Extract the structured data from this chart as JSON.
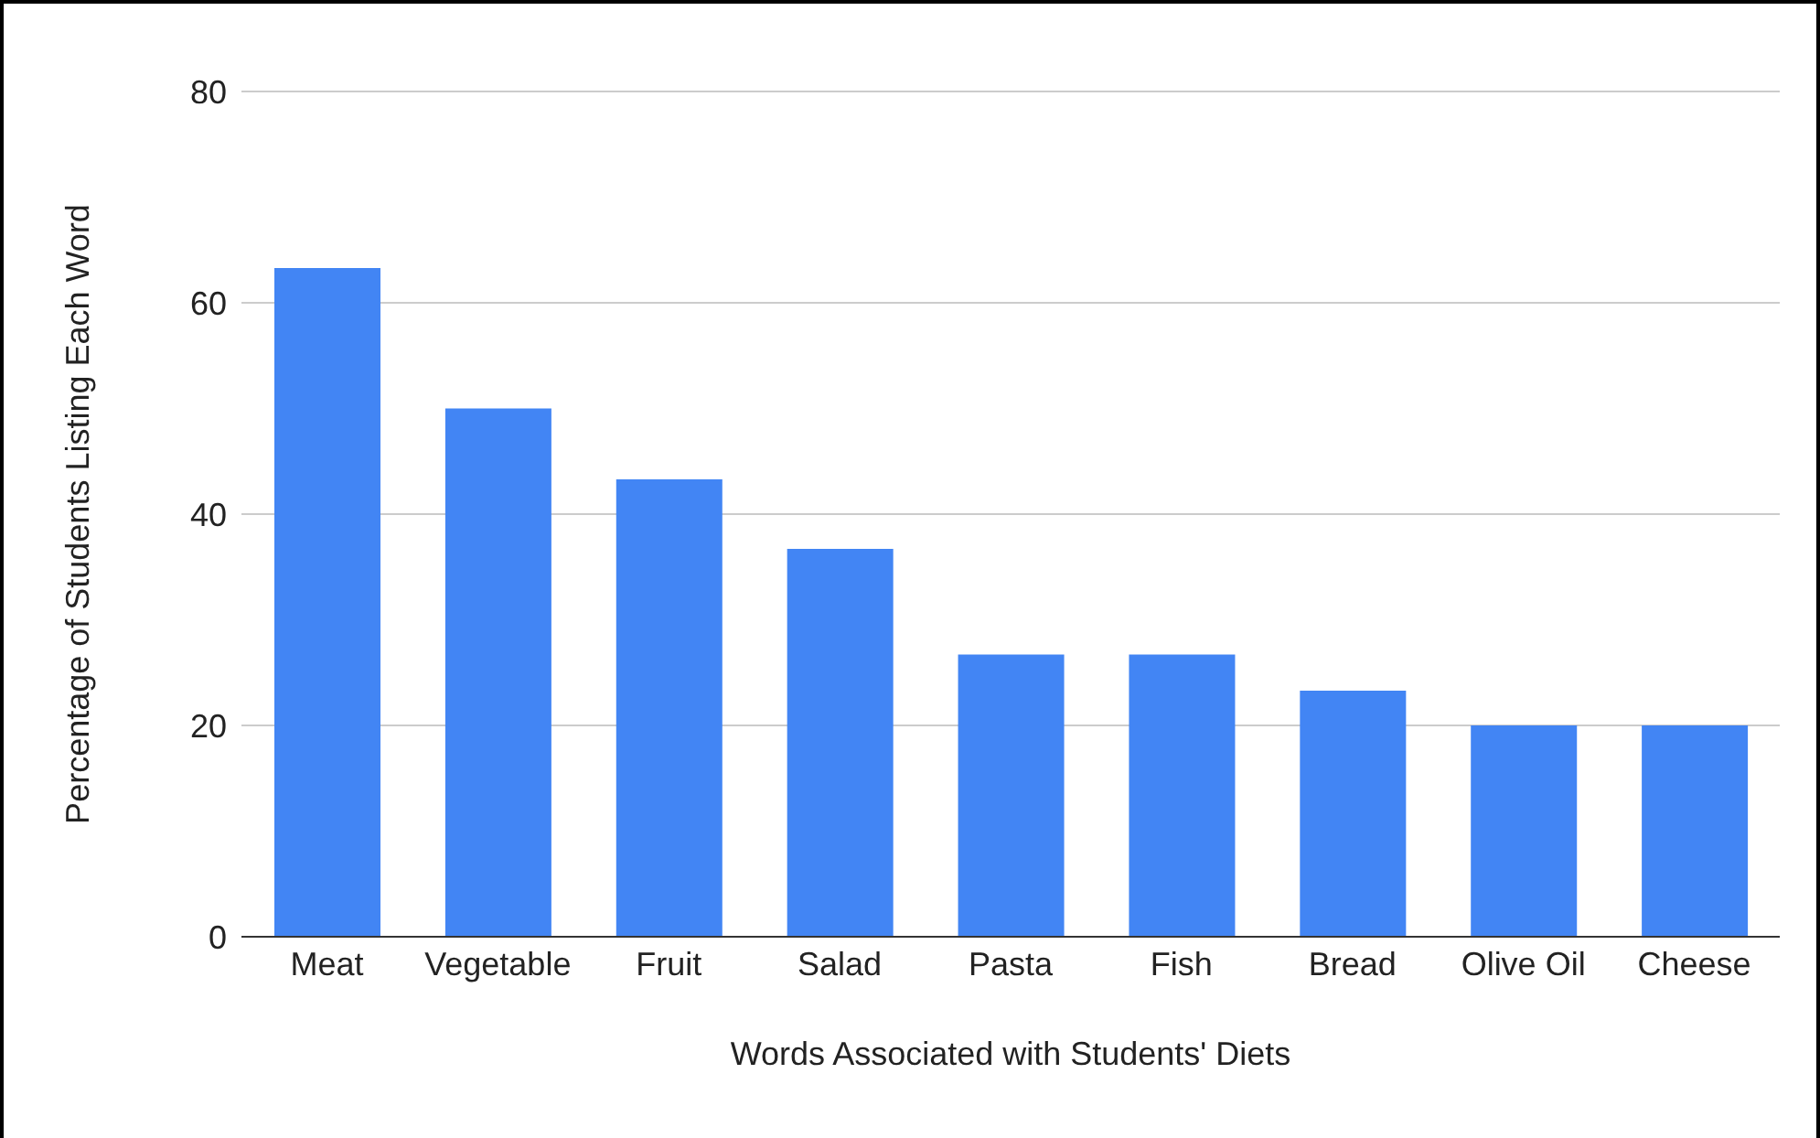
{
  "chart_data": {
    "type": "bar",
    "categories": [
      "Meat",
      "Vegetable",
      "Fruit",
      "Salad",
      "Pasta",
      "Fish",
      "Bread",
      "Olive Oil",
      "Cheese"
    ],
    "values": [
      63.3,
      50,
      43.3,
      36.7,
      26.7,
      26.7,
      23.3,
      20,
      20
    ],
    "color": "#4285f4",
    "xlabel": "Words Associated with Students' Diets",
    "ylabel": "Percentage of Students Listing Each Word",
    "ylim": [
      0,
      80
    ],
    "yticks": [
      0,
      20,
      40,
      60,
      80
    ],
    "grid": "y"
  }
}
